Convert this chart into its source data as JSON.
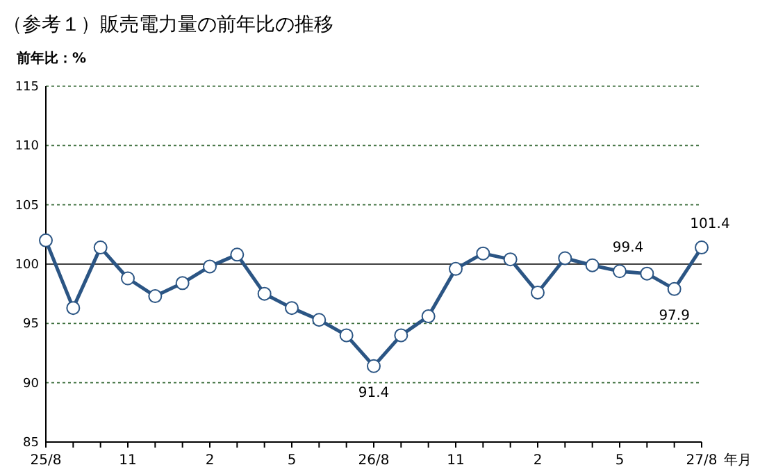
{
  "chart_data": {
    "type": "line",
    "title": "（参考１）販売電力量の前年比の推移",
    "ylabel": "前年比：%",
    "xlabel": "年月",
    "categories": [
      "25/8",
      null,
      null,
      "11",
      null,
      null,
      "2",
      null,
      null,
      "5",
      null,
      null,
      "26/8",
      null,
      null,
      "11",
      null,
      null,
      "2",
      null,
      null,
      "5",
      null,
      null,
      "27/8"
    ],
    "series": [
      {
        "color": "#2b5584",
        "values": [
          102.0,
          96.3,
          101.4,
          98.8,
          97.3,
          98.4,
          99.8,
          100.8,
          97.5,
          96.3,
          95.3,
          94.0,
          91.4,
          94.0,
          95.6,
          99.6,
          100.9,
          100.4,
          97.6,
          100.5,
          99.9,
          99.4,
          99.2,
          97.9,
          101.4
        ],
        "value_labels": [
          null,
          null,
          null,
          null,
          null,
          null,
          null,
          null,
          null,
          null,
          null,
          null,
          "91.4",
          null,
          null,
          null,
          null,
          null,
          null,
          null,
          null,
          "99.4",
          null,
          "97.9",
          "101.4"
        ]
      }
    ],
    "ylim": [
      85,
      115
    ],
    "yticks": [
      85,
      90,
      95,
      100,
      105,
      110,
      115
    ],
    "grid": "y",
    "marker": "circle",
    "line_style": "solid",
    "ref_lines": [
      {
        "axis": "y",
        "value": 100,
        "color": "#404040",
        "line_style": "solid"
      }
    ]
  }
}
